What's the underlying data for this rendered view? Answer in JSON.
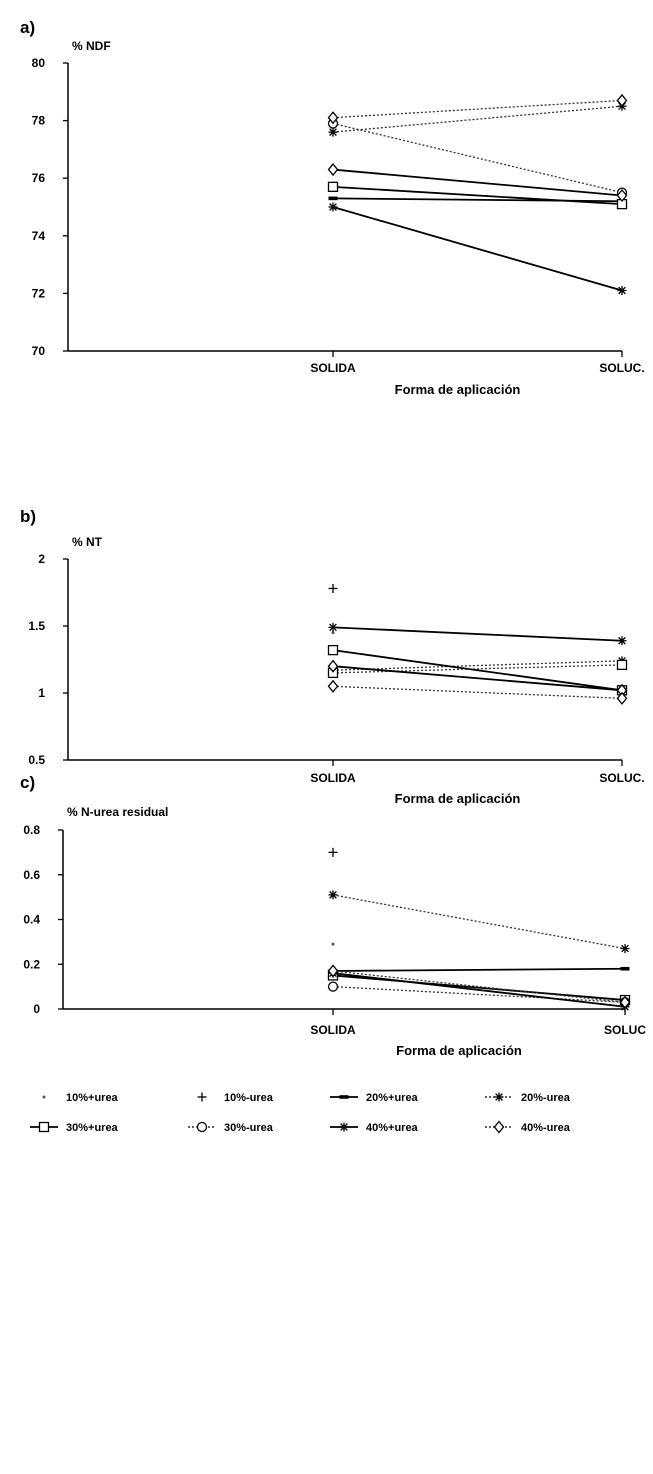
{
  "legend": [
    {
      "name": "10%+urea",
      "marker": "dot",
      "dash": "none"
    },
    {
      "name": "10%-urea",
      "marker": "plus",
      "dash": "none"
    },
    {
      "name": "20%+urea",
      "marker": "bar",
      "dash": "solid"
    },
    {
      "name": "20%-urea",
      "marker": "star",
      "dash": "dotted"
    },
    {
      "name": "30%+urea",
      "marker": "square",
      "dash": "solid"
    },
    {
      "name": "30%-urea",
      "marker": "circle",
      "dash": "dotted"
    },
    {
      "name": "40%+urea",
      "marker": "star",
      "dash": "solid"
    },
    {
      "name": "40%-urea",
      "marker": "diamond",
      "dash": "dotted"
    }
  ],
  "chart_data": [
    {
      "type": "line",
      "panel_label": "a)",
      "title": "",
      "ylabel": "% NDF",
      "xlabel": "Forma de aplicación",
      "categories": [
        "SOLIDA",
        "SOLUC."
      ],
      "ylim": [
        70,
        80
      ],
      "yticks": [
        "70",
        "72",
        "74",
        "76",
        "78",
        "80"
      ],
      "series": [
        {
          "name": "20%+urea",
          "values": [
            75.3,
            75.2
          ],
          "marker": "bar",
          "dash": "solid"
        },
        {
          "name": "20%-urea",
          "values": [
            77.6,
            78.5
          ],
          "marker": "star",
          "dash": "dotted"
        },
        {
          "name": "30%+urea",
          "values": [
            75.7,
            75.1
          ],
          "marker": "square",
          "dash": "solid"
        },
        {
          "name": "30%-urea",
          "values": [
            77.9,
            75.5
          ],
          "marker": "circle",
          "dash": "dotted"
        },
        {
          "name": "40%+urea",
          "values": [
            75.0,
            72.1
          ],
          "marker": "star",
          "dash": "solid"
        },
        {
          "name": "40%-urea",
          "values": [
            78.1,
            78.7
          ],
          "marker": "diamond",
          "dash": "dotted"
        },
        {
          "name": "",
          "values": [
            76.3,
            75.4
          ],
          "marker": "diamond",
          "dash": "solid"
        }
      ]
    },
    {
      "type": "line",
      "panel_label": "b)",
      "title": "",
      "ylabel": "% NT",
      "xlabel": "Forma de aplicación",
      "categories": [
        "SOLIDA",
        "SOLUC."
      ],
      "ylim": [
        0.5,
        2
      ],
      "yticks": [
        "0.5",
        "1",
        "1.5",
        "2"
      ],
      "series": [
        {
          "name": "10%+urea",
          "values": [
            1.45,
            null
          ],
          "marker": "dot",
          "dash": "none"
        },
        {
          "name": "10%-urea",
          "values": [
            1.78,
            null
          ],
          "marker": "plus",
          "dash": "none"
        },
        {
          "name": "20%+urea",
          "values": [
            1.49,
            1.39
          ],
          "marker": "star",
          "dash": "solid"
        },
        {
          "name": "20%-urea",
          "values": [
            1.17,
            1.24
          ],
          "marker": "star",
          "dash": "dotted"
        },
        {
          "name": "30%+urea",
          "values": [
            1.32,
            1.02
          ],
          "marker": "square",
          "dash": "solid"
        },
        {
          "name": "30%-urea",
          "values": [
            1.15,
            1.21
          ],
          "marker": "square",
          "dash": "dotted"
        },
        {
          "name": "40%+urea",
          "values": [
            1.2,
            1.02
          ],
          "marker": "diamond",
          "dash": "solid"
        },
        {
          "name": "40%-urea",
          "values": [
            1.05,
            0.96
          ],
          "marker": "diamond",
          "dash": "dotted"
        }
      ]
    },
    {
      "type": "line",
      "panel_label": "c)",
      "title": "",
      "ylabel": "% N-urea residual",
      "xlabel": "Forma de aplicación",
      "categories": [
        "SOLIDA",
        "SOLUC"
      ],
      "ylim": [
        0,
        0.8
      ],
      "yticks": [
        "0",
        "0.2",
        "0.4",
        "0.6",
        "0.8"
      ],
      "series": [
        {
          "name": "10%+urea",
          "values": [
            0.29,
            null
          ],
          "marker": "dot",
          "dash": "none"
        },
        {
          "name": "10%-urea",
          "values": [
            0.7,
            null
          ],
          "marker": "plus",
          "dash": "none"
        },
        {
          "name": "20%+urea",
          "values": [
            0.17,
            0.18
          ],
          "marker": "bar",
          "dash": "solid"
        },
        {
          "name": "20%-urea",
          "values": [
            0.51,
            0.27
          ],
          "marker": "star",
          "dash": "dotted"
        },
        {
          "name": "30%+urea",
          "values": [
            0.15,
            0.04
          ],
          "marker": "square",
          "dash": "solid"
        },
        {
          "name": "30%-urea",
          "values": [
            0.1,
            0.03
          ],
          "marker": "circle",
          "dash": "dotted"
        },
        {
          "name": "40%+urea",
          "values": [
            0.16,
            0.01
          ],
          "marker": "star",
          "dash": "solid"
        },
        {
          "name": "40%-urea",
          "values": [
            0.17,
            0.03
          ],
          "marker": "diamond",
          "dash": "dotted"
        }
      ]
    }
  ]
}
